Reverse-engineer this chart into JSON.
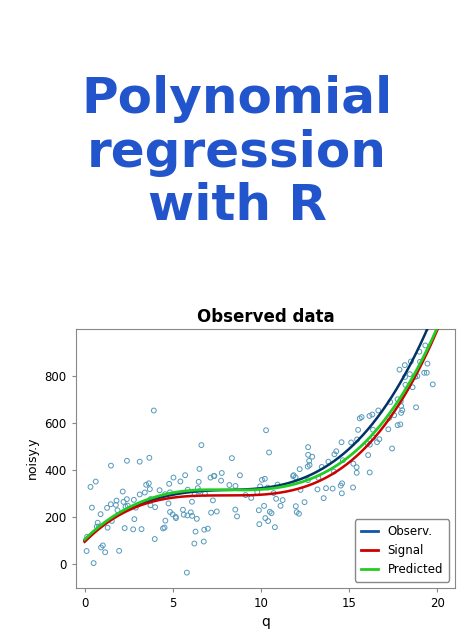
{
  "title_text": "Polynomial\nregression\nwith R",
  "title_color": "#2255CC",
  "title_fontsize": 36,
  "title_fontweight": "bold",
  "chart_title": "Observed data",
  "chart_title_fontsize": 12,
  "chart_title_fontweight": "bold",
  "xlabel": "q",
  "ylabel": "noisy.y",
  "xlim": [
    -0.5,
    21
  ],
  "ylim": [
    -100,
    1000
  ],
  "xticks": [
    0,
    5,
    10,
    15,
    20
  ],
  "yticks": [
    0,
    200,
    400,
    600,
    800
  ],
  "scatter_facecolor": "none",
  "scatter_edgecolor": "#5599BB",
  "scatter_size": 12,
  "line_blue_color": "#003366",
  "line_red_color": "#CC0000",
  "line_green_color": "#22CC22",
  "legend_labels": [
    "Observ.",
    "Signal",
    "Predicted"
  ],
  "legend_blue": "#1155AA",
  "legend_red": "#CC0000",
  "legend_green": "#22CC22",
  "background_color": "#ffffff",
  "seed": 42
}
